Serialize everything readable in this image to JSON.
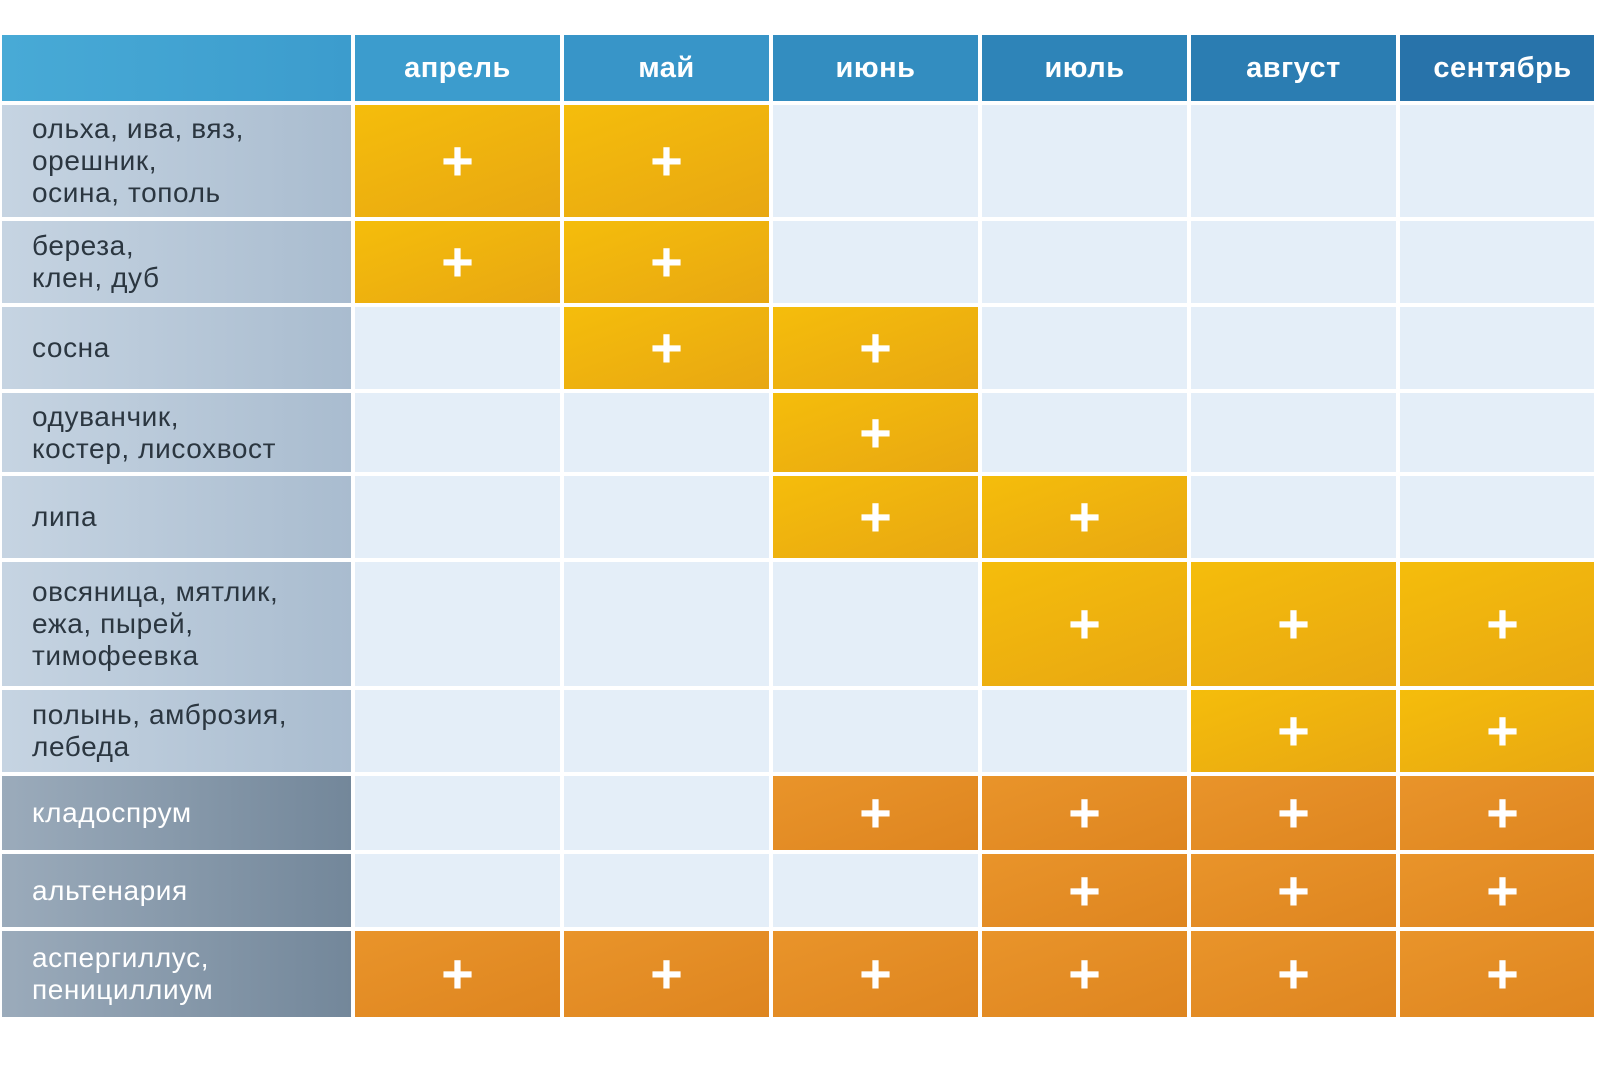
{
  "months": [
    "апрель",
    "май",
    "июнь",
    "июль",
    "август",
    "сентябрь"
  ],
  "marker": "+",
  "colors": {
    "header": "#3a97c9",
    "pollen_active": "#f2b80c",
    "fungus_active": "#e48e25",
    "inactive_cell": "#e4eef8",
    "plant_label_bg": "#b8c8d9",
    "fungus_label_bg": "#8597a9"
  },
  "rows": [
    {
      "label": "ольха, ива,  вяз,\nорешник,\nосина, тополь",
      "kind": "pollen",
      "active": [
        true,
        true,
        false,
        false,
        false,
        false
      ]
    },
    {
      "label": "береза,\nклен, дуб",
      "kind": "pollen",
      "active": [
        true,
        true,
        false,
        false,
        false,
        false
      ]
    },
    {
      "label": "сосна",
      "kind": "pollen",
      "active": [
        false,
        true,
        true,
        false,
        false,
        false
      ]
    },
    {
      "label": "одуванчик,\nкостер, лисохвост",
      "kind": "pollen",
      "active": [
        false,
        false,
        true,
        false,
        false,
        false
      ]
    },
    {
      "label": "липа",
      "kind": "pollen",
      "active": [
        false,
        false,
        true,
        true,
        false,
        false
      ]
    },
    {
      "label": "овсяница, мятлик,\nежа, пырей,\nтимофеевка",
      "kind": "pollen",
      "active": [
        false,
        false,
        false,
        true,
        true,
        true
      ]
    },
    {
      "label": "полынь, амброзия,\nлебеда",
      "kind": "pollen",
      "active": [
        false,
        false,
        false,
        false,
        true,
        true
      ]
    },
    {
      "label": "кладоспрум",
      "kind": "fungus",
      "active": [
        false,
        false,
        true,
        true,
        true,
        true
      ]
    },
    {
      "label": "альтенария",
      "kind": "fungus",
      "active": [
        false,
        false,
        false,
        true,
        true,
        true
      ]
    },
    {
      "label": "аспергиллус,\nпенициллиум",
      "kind": "fungus",
      "active": [
        true,
        true,
        true,
        true,
        true,
        true
      ]
    }
  ]
}
